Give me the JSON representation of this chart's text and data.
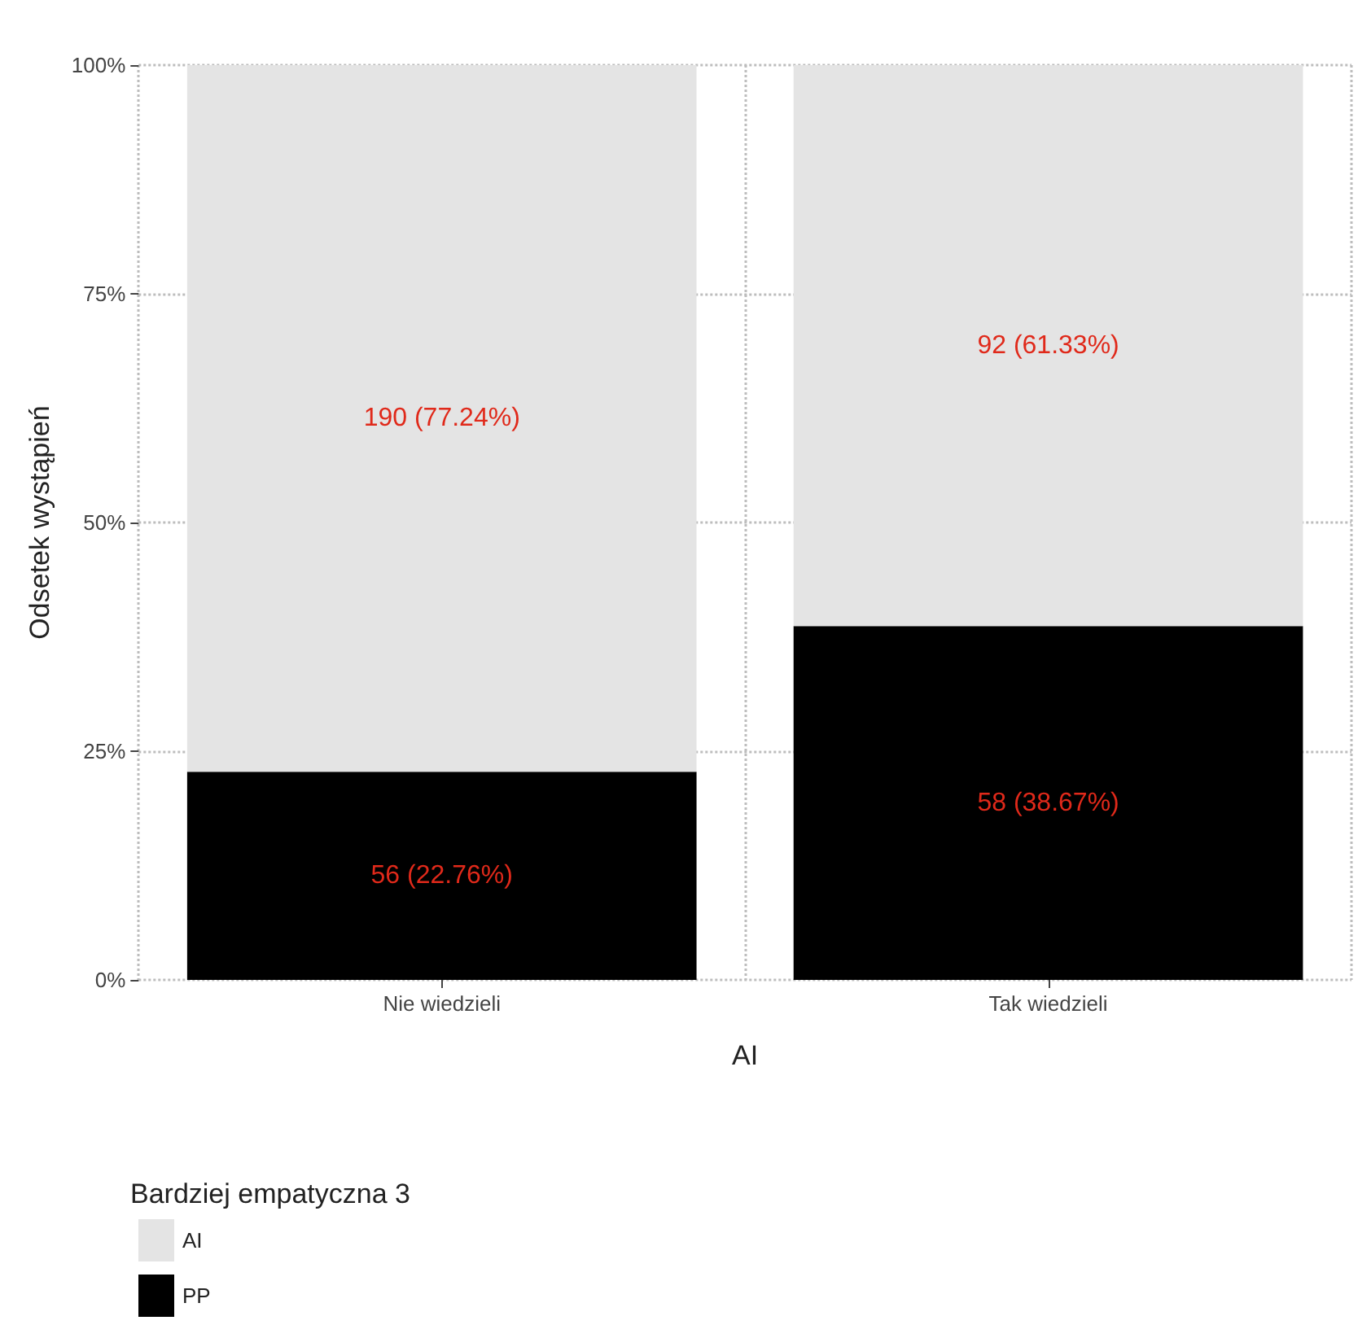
{
  "chart_data": {
    "type": "bar",
    "stacked": true,
    "xlabel": "AI",
    "ylabel": "Odsetek wystąpień",
    "legend_title": "Bardziej empatyczna 3",
    "categories": [
      "Nie wiedzieli",
      "Tak wiedzieli"
    ],
    "series": [
      {
        "name": "PP",
        "color": "#000000",
        "values": [
          22.76,
          38.67
        ],
        "value_labels": [
          "56 (22.76%)",
          "58 (38.67%)"
        ]
      },
      {
        "name": "AI",
        "color": "#e4e4e4",
        "values": [
          77.24,
          61.33
        ],
        "value_labels": [
          "190 (77.24%)",
          "92 (61.33%)"
        ]
      }
    ],
    "ylim": [
      0,
      100
    ],
    "yticks": [
      {
        "value": 0,
        "label": "0%"
      },
      {
        "value": 25,
        "label": "25%"
      },
      {
        "value": 50,
        "label": "50%"
      },
      {
        "value": 75,
        "label": "75%"
      },
      {
        "value": 100,
        "label": "100%"
      }
    ],
    "grid": true,
    "legend": "bottom left"
  }
}
